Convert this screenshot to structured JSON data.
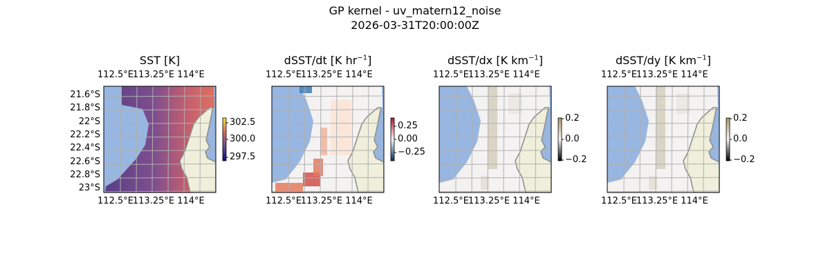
{
  "figure": {
    "title_line1": "GP kernel - uv_matern12_noise",
    "title_line2": "2026-03-31T20:00:00Z"
  },
  "chart_data": [
    {
      "type": "heatmap",
      "title": "SST [K]",
      "x_ticks": [
        "112.5°E",
        "113.25°E",
        "114°E"
      ],
      "y_ticks": [
        "21.6°S",
        "21.8°S",
        "22°S",
        "22.2°S",
        "22.4°S",
        "22.6°S",
        "22.8°S",
        "23°S"
      ],
      "colorbar_ticks": [
        "302.5",
        "300.0",
        "297.5"
      ],
      "colormap": [
        "#0d0887",
        "#6a4a8c",
        "#d86a5e",
        "#f0e442"
      ],
      "value_range_shown": [
        297.5,
        302.5
      ]
    },
    {
      "type": "heatmap",
      "title": "dSST/dt [K hr",
      "title_sup": "−1",
      "title_end": "]",
      "x_ticks": [
        "112.5°E",
        "113.25°E",
        "114°E"
      ],
      "colorbar_ticks": [
        "0.25",
        "0.00",
        "−0.25"
      ],
      "colormap": [
        "#053061",
        "#f7f7f7",
        "#b2182b"
      ]
    },
    {
      "type": "heatmap",
      "title": "dSST/dx [K km",
      "title_sup": "−1",
      "title_end": "]",
      "x_ticks": [
        "112.5°E",
        "113.25°E",
        "114°E"
      ],
      "colorbar_ticks": [
        "0.2",
        "0.0",
        "−0.2"
      ],
      "colormap": [
        "#000000",
        "#f7f5f3",
        "#a89a6a"
      ]
    },
    {
      "type": "heatmap",
      "title": "dSST/dy [K km",
      "title_sup": "−1",
      "title_end": "]",
      "x_ticks": [
        "112.5°E",
        "113.25°E",
        "114°E"
      ],
      "colorbar_ticks": [
        "0.2",
        "0.0",
        "−0.2"
      ],
      "colormap": [
        "#000000",
        "#f7f5f3",
        "#a89a6a"
      ]
    }
  ],
  "colors": {
    "ocean": "#97b6e1",
    "land": "#efefdb",
    "coast": "#8a8a8a",
    "grid": "#b0b0b0"
  }
}
